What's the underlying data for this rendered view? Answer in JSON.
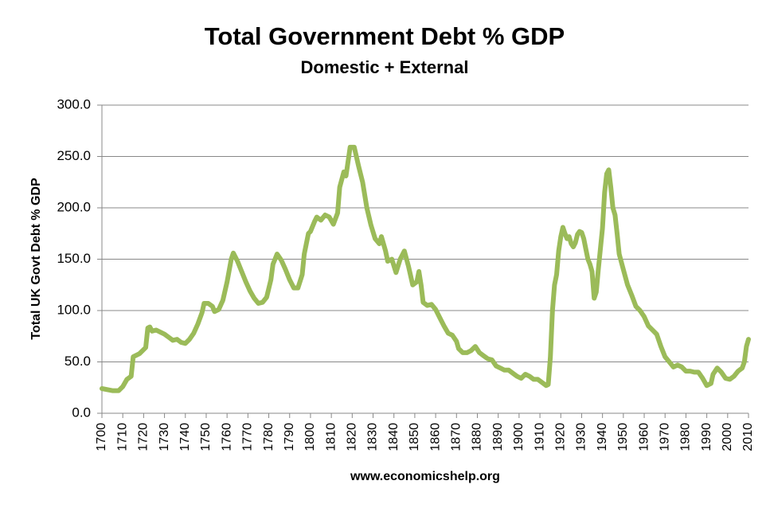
{
  "chart_data": {
    "type": "line",
    "title": "Total Government Debt % GDP",
    "subtitle": "Domestic + External",
    "ylabel": "Total UK Govt Debt % GDP",
    "xlabel": "www.economicshelp.org",
    "color": "#9bbb59",
    "grid": true,
    "x": [
      1700,
      1705,
      1708,
      1710,
      1712,
      1714,
      1715,
      1718,
      1720,
      1721,
      1722,
      1723,
      1724,
      1726,
      1728,
      1730,
      1732,
      1734,
      1736,
      1738,
      1740,
      1742,
      1744,
      1746,
      1748,
      1749,
      1751,
      1753,
      1754,
      1756,
      1758,
      1760,
      1762,
      1763,
      1765,
      1767,
      1769,
      1771,
      1773,
      1775,
      1777,
      1779,
      1781,
      1782,
      1784,
      1786,
      1788,
      1790,
      1792,
      1794,
      1796,
      1797,
      1799,
      1800,
      1802,
      1803,
      1805,
      1807,
      1809,
      1811,
      1813,
      1814,
      1816,
      1817,
      1818,
      1819,
      1821,
      1823,
      1825,
      1827,
      1829,
      1831,
      1833,
      1834,
      1836,
      1837,
      1839,
      1841,
      1843,
      1845,
      1847,
      1849,
      1851,
      1852,
      1853,
      1854,
      1856,
      1858,
      1860,
      1862,
      1864,
      1866,
      1868,
      1870,
      1871,
      1873,
      1875,
      1877,
      1879,
      1881,
      1883,
      1885,
      1887,
      1889,
      1891,
      1893,
      1895,
      1897,
      1899,
      1901,
      1903,
      1905,
      1907,
      1909,
      1911,
      1913,
      1914,
      1915,
      1916,
      1917,
      1918,
      1919,
      1920,
      1921,
      1922,
      1923,
      1924,
      1925,
      1926,
      1927,
      1928,
      1929,
      1930,
      1931,
      1932,
      1933,
      1934,
      1935,
      1936,
      1937,
      1938,
      1939,
      1940,
      1941,
      1942,
      1943,
      1944,
      1945,
      1946,
      1947,
      1948,
      1950,
      1952,
      1954,
      1956,
      1958,
      1960,
      1962,
      1964,
      1966,
      1968,
      1970,
      1972,
      1974,
      1976,
      1978,
      1980,
      1982,
      1984,
      1986,
      1988,
      1990,
      1992,
      1993,
      1995,
      1997,
      1999,
      2001,
      2003,
      2005,
      2007,
      2008,
      2009,
      2010
    ],
    "values": [
      24,
      22,
      22,
      26,
      33,
      36,
      55,
      58,
      62,
      64,
      83,
      84,
      80,
      81,
      79,
      77,
      74,
      71,
      72,
      69,
      68,
      72,
      78,
      87,
      98,
      107,
      107,
      104,
      99,
      101,
      110,
      128,
      150,
      156,
      148,
      138,
      128,
      119,
      112,
      107,
      108,
      113,
      130,
      145,
      155,
      149,
      140,
      130,
      122,
      122,
      135,
      155,
      175,
      177,
      187,
      191,
      188,
      193,
      191,
      184,
      195,
      220,
      235,
      231,
      245,
      259,
      259,
      241,
      225,
      200,
      183,
      170,
      165,
      172,
      158,
      148,
      150,
      137,
      150,
      158,
      143,
      125,
      128,
      138,
      125,
      108,
      105,
      106,
      101,
      93,
      85,
      78,
      76,
      70,
      63,
      59,
      59,
      61,
      65,
      59,
      56,
      53,
      52,
      46,
      44,
      42,
      42,
      39,
      36,
      34,
      38,
      36,
      33,
      33,
      30,
      27,
      28,
      55,
      100,
      125,
      135,
      158,
      172,
      181,
      175,
      170,
      172,
      165,
      162,
      166,
      174,
      177,
      176,
      170,
      160,
      150,
      145,
      138,
      112,
      118,
      140,
      160,
      180,
      215,
      233,
      237,
      220,
      200,
      193,
      175,
      155,
      140,
      125,
      115,
      104,
      100,
      94,
      85,
      81,
      77,
      65,
      55,
      50,
      45,
      47,
      45,
      41,
      41,
      40,
      40,
      34,
      27,
      29,
      38,
      44,
      40,
      34,
      33,
      36,
      41,
      44,
      50,
      65,
      72
    ],
    "xlim": [
      1700,
      2010
    ],
    "xticks": [
      1700,
      1710,
      1720,
      1730,
      1740,
      1750,
      1760,
      1770,
      1780,
      1790,
      1800,
      1810,
      1820,
      1830,
      1840,
      1850,
      1860,
      1870,
      1880,
      1890,
      1900,
      1910,
      1920,
      1930,
      1940,
      1950,
      1960,
      1970,
      1980,
      1990,
      2000,
      2010
    ],
    "ylim": [
      0,
      300
    ],
    "yticks": [
      {
        "value": 0,
        "label": "0.0"
      },
      {
        "value": 50,
        "label": "50.0"
      },
      {
        "value": 100,
        "label": "100.0"
      },
      {
        "value": 150,
        "label": "150.0"
      },
      {
        "value": 200,
        "label": "200.0"
      },
      {
        "value": 250,
        "label": "250.0"
      },
      {
        "value": 300,
        "label": "300.0"
      }
    ]
  }
}
